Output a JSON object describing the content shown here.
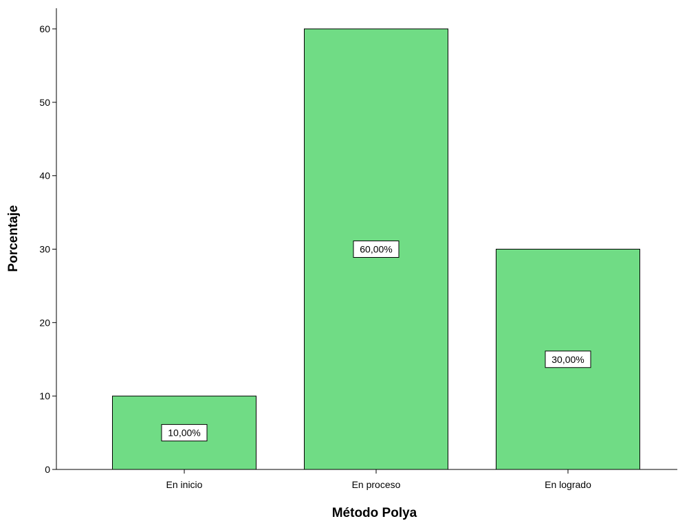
{
  "chart_data": {
    "type": "bar",
    "title": "",
    "xlabel": "Método Polya",
    "ylabel": "Porcentaje",
    "categories": [
      "En inicio",
      "En proceso",
      "En logrado"
    ],
    "values": [
      10,
      60,
      30
    ],
    "data_labels": [
      "10,00%",
      "60,00%",
      "30,00%"
    ],
    "ylim": [
      0,
      60
    ],
    "yticks": [
      0,
      10,
      20,
      30,
      40,
      50,
      60
    ],
    "ytick_labels": [
      "0",
      "10",
      "20",
      "30",
      "40",
      "50",
      "60"
    ],
    "grid": false,
    "legend": "none",
    "bar_color": "#70DC85",
    "bar_edge_color": "#000000"
  }
}
